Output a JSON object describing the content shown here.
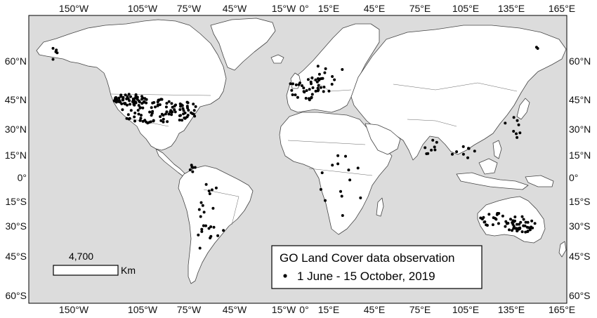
{
  "map": {
    "colors": {
      "ocean": "#dcdcdc",
      "land": "#ffffff",
      "outline": "#444444",
      "point": "#000000"
    },
    "longitude_labels": [
      "150°W",
      "105°W",
      "75°W",
      "45°W",
      "15°W",
      "0°",
      "15°E",
      "45°E",
      "75°E",
      "105°E",
      "135°E",
      "165°E"
    ],
    "latitude_labels": [
      "60°N",
      "45°N",
      "30°N",
      "15°N",
      "0°",
      "15°S",
      "30°S",
      "45°S",
      "60°S"
    ],
    "scale_bar": {
      "distance": "4,700",
      "unit": "Km"
    },
    "legend": {
      "title": "GO Land Cover data observation",
      "marker_icon": "dot-marker-icon",
      "entry": "1 June - 15 October, 2019"
    }
  }
}
